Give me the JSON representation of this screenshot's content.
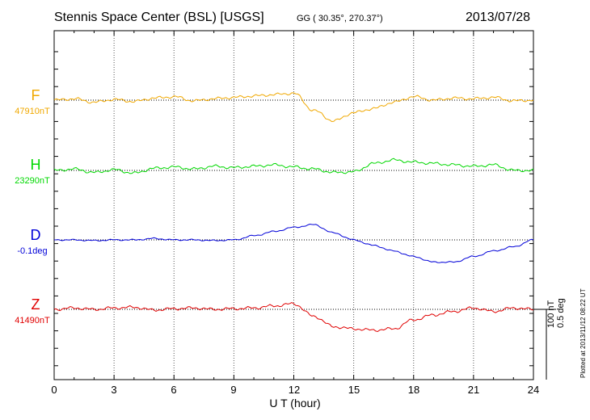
{
  "header": {
    "station": "Stennis Space Center (BSL)  [USGS]",
    "coords": "GG ( 30.35°, 270.37°)",
    "date": "2013/07/28"
  },
  "footer": {
    "xlabel": "U T (hour)",
    "scale_nt": "100 nT",
    "scale_deg": "0.5 deg",
    "plotted": "Plotted at 2013/11/12 08:22 UT"
  },
  "colors": {
    "F": "#f0a800",
    "H": "#00d800",
    "D": "#0000d8",
    "Z": "#e00000"
  },
  "chart_data": {
    "type": "line",
    "title": "Stennis Space Center (BSL)  [USGS]",
    "xlabel": "U T (hour)",
    "xlim": [
      0,
      24
    ],
    "x_ticks": [
      "0",
      "3",
      "6",
      "9",
      "12",
      "15",
      "18",
      "21",
      "24"
    ],
    "x_ticks_hours": [
      0,
      3,
      6,
      9,
      12,
      15,
      18,
      21,
      24
    ],
    "units_per_tick_step": 100,
    "grid": true,
    "x": [
      0,
      1,
      2,
      3,
      4,
      5,
      6,
      7,
      8,
      9,
      10,
      11,
      12,
      13,
      14,
      15,
      16,
      17,
      18,
      19,
      20,
      21,
      22,
      23,
      24
    ],
    "series": [
      {
        "name": "F",
        "baseline_label": "47910nT",
        "units": "nT",
        "values": [
          0,
          2,
          -3,
          1,
          -2,
          3,
          5,
          -1,
          2,
          4,
          6,
          8,
          10,
          -15,
          -30,
          -18,
          -12,
          -3,
          5,
          0,
          3,
          2,
          4,
          -1,
          0
        ]
      },
      {
        "name": "H",
        "baseline_label": "23290nT",
        "units": "nT",
        "values": [
          0,
          2,
          -3,
          1,
          -4,
          3,
          5,
          2,
          6,
          4,
          6,
          8,
          5,
          2,
          -3,
          -2,
          10,
          15,
          12,
          10,
          8,
          6,
          8,
          0,
          0
        ]
      },
      {
        "name": "D",
        "baseline_label": "-0.1deg",
        "units": "deg",
        "values": [
          0,
          0,
          -0.005,
          0,
          0,
          0.01,
          0,
          0,
          -0.005,
          0,
          0.03,
          0.06,
          0.09,
          0.11,
          0.05,
          0.0,
          -0.04,
          -0.08,
          -0.12,
          -0.16,
          -0.16,
          -0.12,
          -0.08,
          -0.05,
          0
        ]
      },
      {
        "name": "Z",
        "baseline_label": "41490nT",
        "units": "nT",
        "values": [
          0,
          2,
          0,
          2,
          3,
          -1,
          1,
          2,
          0,
          1,
          2,
          5,
          8,
          -10,
          -25,
          -28,
          -30,
          -28,
          -15,
          -8,
          -3,
          2,
          -3,
          2,
          0
        ]
      }
    ]
  }
}
